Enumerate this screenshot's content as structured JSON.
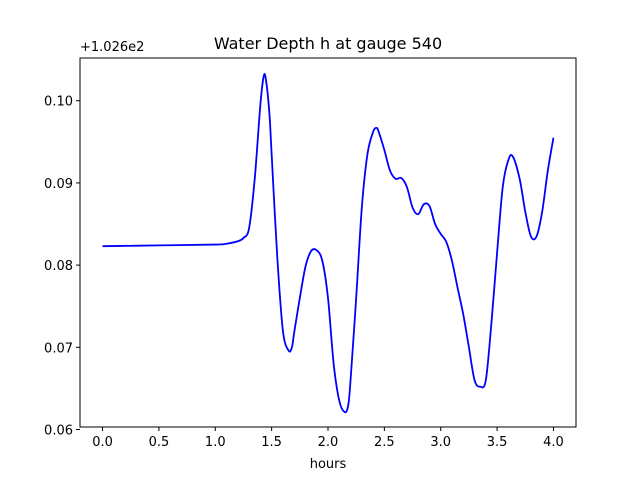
{
  "chart_data": {
    "type": "line",
    "title": "Water Depth h at gauge 540",
    "xlabel": "hours",
    "ylabel": "",
    "y_offset_label": "+1.026e2",
    "y_offset": 102.6,
    "xlim": [
      -0.2,
      4.2
    ],
    "ylim": [
      0.0603,
      0.1052
    ],
    "x_ticks": [
      0.0,
      0.5,
      1.0,
      1.5,
      2.0,
      2.5,
      3.0,
      3.5,
      4.0
    ],
    "x_tick_labels": [
      "0.0",
      "0.5",
      "1.0",
      "1.5",
      "2.0",
      "2.5",
      "3.0",
      "3.5",
      "4.0"
    ],
    "y_ticks": [
      0.06,
      0.07,
      0.08,
      0.09,
      0.1
    ],
    "y_tick_labels": [
      "0.06",
      "0.07",
      "0.08",
      "0.09",
      "0.10"
    ],
    "grid": false,
    "legend": false,
    "series": [
      {
        "color": "#0000ff",
        "x": [
          0.0,
          0.5,
          1.0,
          1.1,
          1.2,
          1.25,
          1.3,
          1.35,
          1.4,
          1.43,
          1.45,
          1.48,
          1.5,
          1.55,
          1.6,
          1.65,
          1.68,
          1.7,
          1.75,
          1.8,
          1.85,
          1.9,
          1.95,
          2.0,
          2.05,
          2.1,
          2.15,
          2.18,
          2.2,
          2.25,
          2.3,
          2.35,
          2.4,
          2.43,
          2.45,
          2.5,
          2.55,
          2.6,
          2.65,
          2.7,
          2.75,
          2.8,
          2.85,
          2.9,
          2.95,
          3.0,
          3.05,
          3.1,
          3.15,
          3.2,
          3.25,
          3.3,
          3.35,
          3.4,
          3.45,
          3.5,
          3.55,
          3.6,
          3.64,
          3.7,
          3.75,
          3.8,
          3.85,
          3.9,
          3.95,
          4.0
        ],
        "y": [
          0.0823,
          0.0824,
          0.0825,
          0.0826,
          0.0829,
          0.0833,
          0.0845,
          0.0905,
          0.0995,
          0.103,
          0.1025,
          0.0985,
          0.0935,
          0.081,
          0.072,
          0.0696,
          0.07,
          0.0718,
          0.076,
          0.0798,
          0.0817,
          0.0818,
          0.0805,
          0.076,
          0.068,
          0.0635,
          0.0621,
          0.063,
          0.066,
          0.076,
          0.087,
          0.0935,
          0.0962,
          0.0967,
          0.0962,
          0.094,
          0.0915,
          0.0905,
          0.0906,
          0.0895,
          0.087,
          0.0862,
          0.0874,
          0.0872,
          0.085,
          0.0838,
          0.0828,
          0.0805,
          0.0772,
          0.074,
          0.07,
          0.066,
          0.0652,
          0.066,
          0.073,
          0.0815,
          0.0895,
          0.0928,
          0.0932,
          0.0905,
          0.0865,
          0.0835,
          0.0835,
          0.0865,
          0.0915,
          0.0955
        ]
      }
    ]
  }
}
